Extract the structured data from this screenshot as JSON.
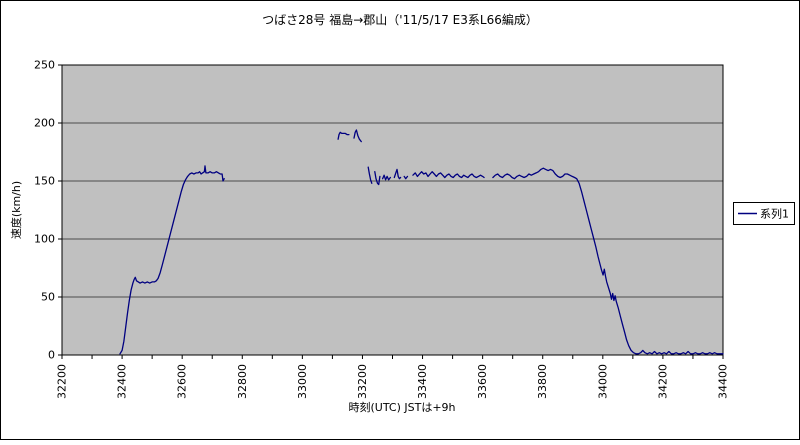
{
  "chart": {
    "title": "つばさ28号 福島→郡山（'11/5/17 E3系L66編成）",
    "x_axis_title": "時刻(UTC) JSTは+9h",
    "y_axis_title": "速度(km/h)",
    "legend_label": "系列1"
  },
  "chart_data": {
    "type": "line",
    "title": "つばさ28号 福島→郡山（'11/5/17 E3系L66編成）",
    "xlabel": "時刻(UTC) JSTは+9h",
    "ylabel": "速度(km/h)",
    "xlim": [
      32200,
      34400
    ],
    "ylim": [
      0,
      250
    ],
    "x_major_ticks": [
      32200,
      32400,
      32600,
      32800,
      33000,
      33200,
      33400,
      33600,
      33800,
      34000,
      34200,
      34400
    ],
    "x_minor_tick_step": 100,
    "y_ticks": [
      0,
      50,
      100,
      150,
      200,
      250
    ],
    "grid": "horizontal",
    "legend_position": "right",
    "colors": {
      "plot_bg": "#c0c0c0",
      "gridline": "#4d4d4d",
      "axis": "#000000",
      "series": "#000080",
      "legend_bg": "#ffffff",
      "border": "#000000"
    },
    "series": [
      {
        "name": "系列1",
        "color": "#000080",
        "segments": [
          [
            [
              32393,
              1
            ],
            [
              32400,
              4
            ],
            [
              32406,
              12
            ],
            [
              32412,
              24
            ],
            [
              32418,
              36
            ],
            [
              32424,
              47
            ],
            [
              32430,
              56
            ],
            [
              32436,
              62
            ],
            [
              32440,
              65
            ],
            [
              32444,
              67
            ],
            [
              32448,
              64
            ],
            [
              32454,
              63
            ],
            [
              32460,
              62
            ],
            [
              32468,
              63
            ],
            [
              32476,
              62
            ],
            [
              32484,
              63
            ],
            [
              32492,
              62
            ],
            [
              32500,
              63
            ],
            [
              32508,
              63
            ],
            [
              32514,
              64
            ],
            [
              32520,
              66
            ],
            [
              32527,
              71
            ],
            [
              32534,
              78
            ],
            [
              32541,
              85
            ],
            [
              32548,
              92
            ],
            [
              32555,
              99
            ],
            [
              32562,
              106
            ],
            [
              32569,
              113
            ],
            [
              32576,
              120
            ],
            [
              32583,
              127
            ],
            [
              32590,
              134
            ],
            [
              32597,
              141
            ],
            [
              32604,
              147
            ],
            [
              32611,
              151
            ],
            [
              32618,
              154
            ],
            [
              32625,
              156
            ],
            [
              32632,
              157
            ],
            [
              32639,
              156
            ],
            [
              32646,
              157
            ],
            [
              32653,
              157
            ],
            [
              32658,
              158
            ],
            [
              32663,
              156
            ],
            [
              32668,
              157
            ],
            [
              32674,
              158
            ],
            [
              32676,
              163
            ],
            [
              32679,
              157
            ],
            [
              32686,
              157
            ],
            [
              32693,
              158
            ],
            [
              32700,
              157
            ],
            [
              32707,
              157
            ],
            [
              32714,
              158
            ],
            [
              32721,
              157
            ],
            [
              32727,
              156
            ],
            [
              32733,
              156
            ],
            [
              32736,
              150
            ],
            [
              32740,
              152
            ]
          ],
          [
            [
              33119,
              186
            ],
            [
              33122,
              190
            ],
            [
              33126,
              192
            ],
            [
              33131,
              191
            ],
            [
              33137,
              191
            ],
            [
              33143,
              191
            ],
            [
              33149,
              190
            ],
            [
              33155,
              190
            ]
          ],
          [
            [
              33172,
              187
            ],
            [
              33176,
              192
            ],
            [
              33180,
              194
            ],
            [
              33185,
              189
            ],
            [
              33190,
              186
            ],
            [
              33196,
              184
            ]
          ],
          [
            [
              33219,
              162
            ],
            [
              33223,
              156
            ],
            [
              33227,
              151
            ],
            [
              33231,
              148
            ]
          ],
          [
            [
              33241,
              158
            ],
            [
              33245,
              152
            ],
            [
              33250,
              148
            ],
            [
              33254,
              147
            ],
            [
              33258,
              154
            ]
          ],
          [
            [
              33267,
              152
            ],
            [
              33272,
              155
            ],
            [
              33277,
              151
            ],
            [
              33282,
              154
            ],
            [
              33287,
              151
            ],
            [
              33293,
              153
            ]
          ],
          [
            [
              33306,
              153
            ],
            [
              33311,
              157
            ],
            [
              33315,
              160
            ],
            [
              33319,
              154
            ],
            [
              33323,
              152
            ],
            [
              33327,
              153
            ]
          ],
          [
            [
              33339,
              154
            ],
            [
              33344,
              152
            ],
            [
              33350,
              154
            ]
          ],
          [
            [
              33368,
              155
            ],
            [
              33376,
              157
            ],
            [
              33383,
              154
            ],
            [
              33390,
              156
            ],
            [
              33397,
              158
            ],
            [
              33404,
              156
            ],
            [
              33411,
              157
            ],
            [
              33418,
              154
            ],
            [
              33425,
              156
            ],
            [
              33432,
              158
            ],
            [
              33439,
              156
            ],
            [
              33446,
              154
            ],
            [
              33453,
              156
            ],
            [
              33460,
              157
            ],
            [
              33467,
              155
            ],
            [
              33474,
              153
            ],
            [
              33481,
              155
            ],
            [
              33488,
              156
            ],
            [
              33495,
              154
            ],
            [
              33502,
              153
            ],
            [
              33509,
              155
            ],
            [
              33516,
              156
            ],
            [
              33523,
              154
            ],
            [
              33530,
              153
            ],
            [
              33537,
              155
            ],
            [
              33544,
              154
            ],
            [
              33551,
              153
            ],
            [
              33558,
              155
            ],
            [
              33565,
              156
            ],
            [
              33572,
              154
            ],
            [
              33579,
              153
            ],
            [
              33586,
              154
            ],
            [
              33593,
              155
            ],
            [
              33600,
              154
            ],
            [
              33605,
              153
            ]
          ],
          [
            [
              33634,
              153
            ],
            [
              33642,
              155
            ],
            [
              33650,
              156
            ],
            [
              33658,
              154
            ],
            [
              33666,
              153
            ],
            [
              33674,
              155
            ],
            [
              33682,
              156
            ],
            [
              33690,
              155
            ],
            [
              33698,
              153
            ],
            [
              33706,
              152
            ],
            [
              33714,
              154
            ],
            [
              33722,
              155
            ],
            [
              33730,
              154
            ],
            [
              33738,
              153
            ],
            [
              33746,
              154
            ],
            [
              33754,
              156
            ],
            [
              33762,
              155
            ],
            [
              33770,
              156
            ],
            [
              33778,
              157
            ],
            [
              33786,
              158
            ],
            [
              33794,
              160
            ],
            [
              33802,
              161
            ],
            [
              33810,
              160
            ],
            [
              33818,
              159
            ],
            [
              33826,
              160
            ],
            [
              33834,
              159
            ],
            [
              33842,
              156
            ],
            [
              33850,
              154
            ],
            [
              33858,
              153
            ],
            [
              33866,
              154
            ],
            [
              33874,
              156
            ],
            [
              33882,
              156
            ],
            [
              33890,
              155
            ],
            [
              33898,
              154
            ],
            [
              33906,
              153
            ],
            [
              33913,
              152
            ],
            [
              33921,
              148
            ],
            [
              33929,
              141
            ],
            [
              33937,
              133
            ],
            [
              33945,
              125
            ],
            [
              33953,
              117
            ],
            [
              33961,
              109
            ],
            [
              33969,
              101
            ],
            [
              33977,
              93
            ],
            [
              33984,
              85
            ],
            [
              33990,
              79
            ],
            [
              33996,
              73
            ],
            [
              34001,
              69
            ],
            [
              34005,
              74
            ],
            [
              34009,
              68
            ],
            [
              34013,
              63
            ],
            [
              34019,
              58
            ],
            [
              34025,
              53
            ],
            [
              34029,
              48
            ],
            [
              34033,
              53
            ],
            [
              34037,
              47
            ],
            [
              34041,
              51
            ],
            [
              34045,
              46
            ],
            [
              34051,
              41
            ],
            [
              34058,
              34
            ],
            [
              34065,
              27
            ],
            [
              34072,
              20
            ],
            [
              34079,
              13
            ],
            [
              34086,
              8
            ],
            [
              34094,
              4
            ],
            [
              34102,
              2
            ],
            [
              34110,
              1
            ],
            [
              34118,
              1
            ],
            [
              34126,
              2
            ],
            [
              34133,
              4
            ],
            [
              34140,
              2
            ],
            [
              34148,
              1
            ],
            [
              34156,
              2
            ],
            [
              34164,
              1
            ],
            [
              34172,
              3
            ],
            [
              34180,
              1
            ],
            [
              34188,
              2
            ],
            [
              34196,
              1
            ],
            [
              34204,
              2
            ],
            [
              34212,
              1
            ],
            [
              34220,
              3
            ],
            [
              34228,
              1
            ],
            [
              34236,
              1
            ],
            [
              34244,
              2
            ],
            [
              34252,
              1
            ],
            [
              34260,
              1
            ],
            [
              34268,
              2
            ],
            [
              34276,
              1
            ],
            [
              34284,
              3
            ],
            [
              34292,
              1
            ],
            [
              34300,
              1
            ],
            [
              34308,
              2
            ],
            [
              34316,
              1
            ],
            [
              34324,
              1
            ],
            [
              34332,
              2
            ],
            [
              34340,
              1
            ],
            [
              34348,
              1
            ],
            [
              34356,
              2
            ],
            [
              34364,
              1
            ],
            [
              34372,
              2
            ],
            [
              34380,
              1
            ],
            [
              34388,
              1
            ],
            [
              34396,
              1
            ],
            [
              34400,
              1
            ]
          ]
        ]
      }
    ]
  }
}
